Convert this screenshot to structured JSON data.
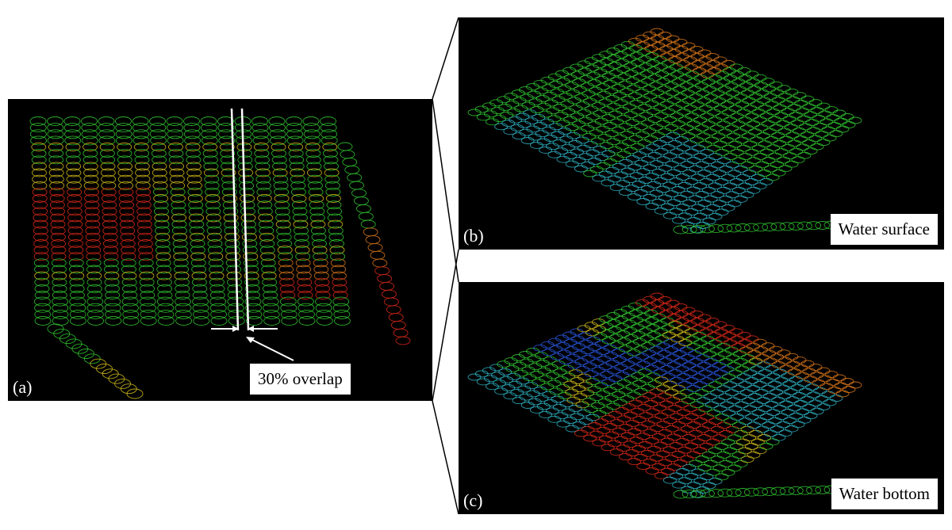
{
  "figure": {
    "panel_a": {
      "label": "(a)",
      "annotation": "30% overlap"
    },
    "panel_b": {
      "label": "(b)",
      "caption": "Water surface"
    },
    "panel_c": {
      "label": "(c)",
      "caption": "Water bottom"
    }
  },
  "colors": {
    "background": "#000000",
    "green": "#33cc33",
    "yellow": "#d8c21a",
    "orange": "#e07a1a",
    "red": "#e22a1a",
    "blue": "#2a5ae6",
    "cyan": "#2fb6c8",
    "annotation": "#ffffff"
  }
}
